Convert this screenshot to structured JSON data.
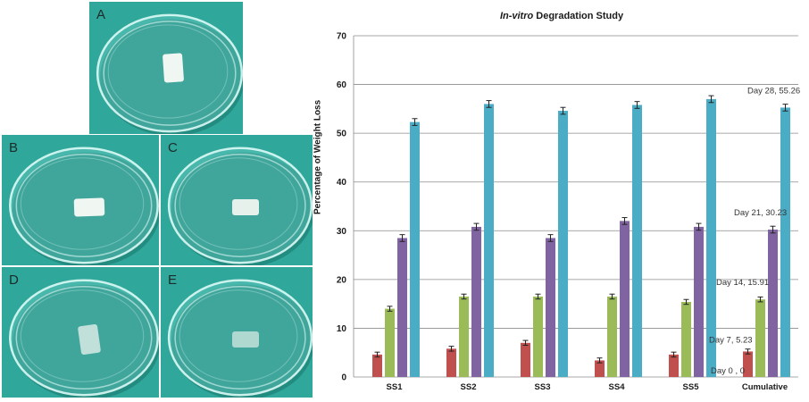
{
  "panels": {
    "A": "A",
    "B": "B",
    "C": "C",
    "D": "D",
    "E": "E"
  },
  "colors": {
    "photo_bg": "#2fa79a",
    "day0": "#c0504d",
    "day7": "#9bbb59",
    "day14": "#8064a2",
    "day21": "#4bacc6"
  },
  "chart_data": {
    "type": "bar",
    "title_italic": "In-vitro",
    "title_rest": " Degradation Study",
    "ylabel": "Percentage of Weight Loss",
    "xlabel": "",
    "ylim": [
      0,
      70
    ],
    "yticks": [
      0,
      10,
      20,
      30,
      40,
      50,
      60,
      70
    ],
    "grid": true,
    "categories": [
      "SS1",
      "SS2",
      "SS3",
      "SS4",
      "SS5",
      "Cumulative"
    ],
    "series": [
      {
        "values": [
          4.6,
          5.8,
          7.0,
          3.4,
          4.6,
          5.23
        ],
        "error": [
          0.5,
          0.5,
          0.5,
          0.5,
          0.5,
          0.5
        ]
      },
      {
        "values": [
          14.0,
          16.5,
          16.5,
          16.5,
          15.4,
          15.91
        ],
        "error": [
          0.5,
          0.5,
          0.5,
          0.5,
          0.5,
          0.5
        ]
      },
      {
        "values": [
          28.5,
          30.8,
          28.5,
          32.0,
          30.8,
          30.23
        ],
        "error": [
          0.7,
          0.7,
          0.7,
          0.7,
          0.7,
          0.7
        ]
      },
      {
        "values": [
          52.3,
          56.0,
          54.6,
          55.8,
          57.0,
          55.26
        ],
        "error": [
          0.7,
          0.7,
          0.7,
          0.7,
          0.7,
          0.7
        ]
      }
    ],
    "annotations": [
      "Day 0 , 0",
      "Day 7, 5.23",
      "Day 14, 15.91",
      "Day 21, 30.23",
      "Day 28, 55.26"
    ]
  }
}
